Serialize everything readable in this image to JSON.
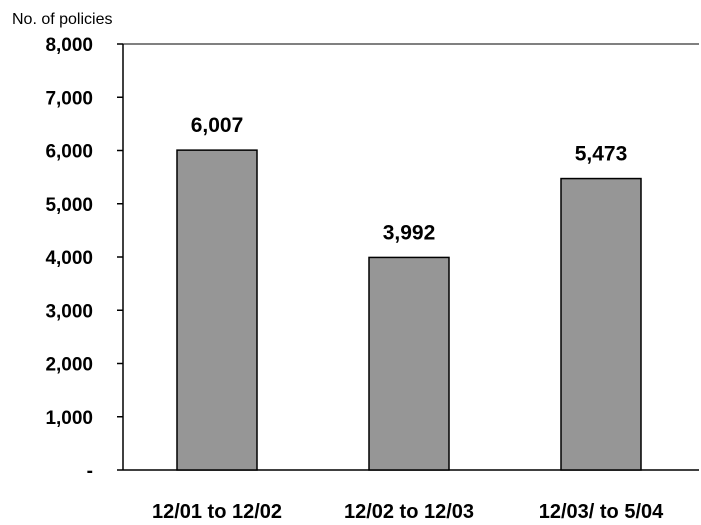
{
  "chart_data": {
    "type": "bar",
    "title": "",
    "xlabel": "",
    "ylabel": "No. of policies",
    "categories": [
      "12/01 to 12/02",
      "12/02 to 12/03",
      "12/03/ to 5/04"
    ],
    "values": [
      6007,
      3992,
      5473
    ],
    "data_labels": [
      "6,007",
      "3,992",
      "5,473"
    ],
    "ylim": [
      0,
      8000
    ],
    "y_ticks": [
      0,
      1000,
      2000,
      3000,
      4000,
      5000,
      6000,
      7000,
      8000
    ],
    "y_tick_labels": [
      "-",
      "1,000",
      "2,000",
      "3,000",
      "4,000",
      "5,000",
      "6,000",
      "7,000",
      "8,000"
    ],
    "grid": false,
    "legend": "none",
    "colors": {
      "bar_fill": "#969696",
      "bar_stroke": "#000000",
      "axis": "#000000",
      "top_line": "#808080"
    }
  }
}
